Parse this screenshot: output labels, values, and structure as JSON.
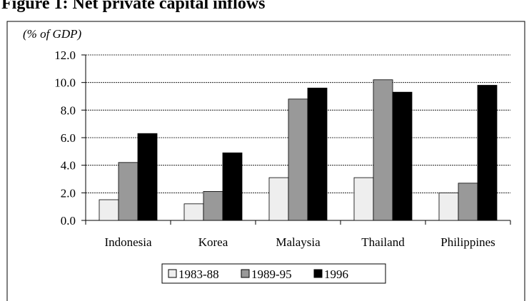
{
  "chart_data": {
    "type": "bar",
    "title": "Figure 1: Net private capital inflows",
    "ylabel": "(% of GDP)",
    "categories": [
      "Indonesia",
      "Korea",
      "Malaysia",
      "Thailand",
      "Philippines"
    ],
    "series": [
      {
        "name": "1983-88",
        "color": "#eeeeee",
        "values": [
          1.5,
          1.2,
          3.1,
          3.1,
          2.0
        ]
      },
      {
        "name": "1989-95",
        "color": "#999999",
        "values": [
          4.2,
          2.1,
          8.8,
          10.2,
          2.7
        ]
      },
      {
        "name": "1996",
        "color": "#000000",
        "values": [
          6.3,
          4.9,
          9.6,
          9.3,
          9.8
        ]
      }
    ],
    "ylim": [
      0,
      12
    ],
    "yticks": [
      {
        "value": 0,
        "label": "0.0"
      },
      {
        "value": 2,
        "label": "2.0"
      },
      {
        "value": 4,
        "label": "4.0"
      },
      {
        "value": 6,
        "label": "6.0"
      },
      {
        "value": 8,
        "label": "8.0"
      },
      {
        "value": 10,
        "label": "10.0"
      },
      {
        "value": 12,
        "label": "12.0"
      }
    ],
    "grid": true
  }
}
